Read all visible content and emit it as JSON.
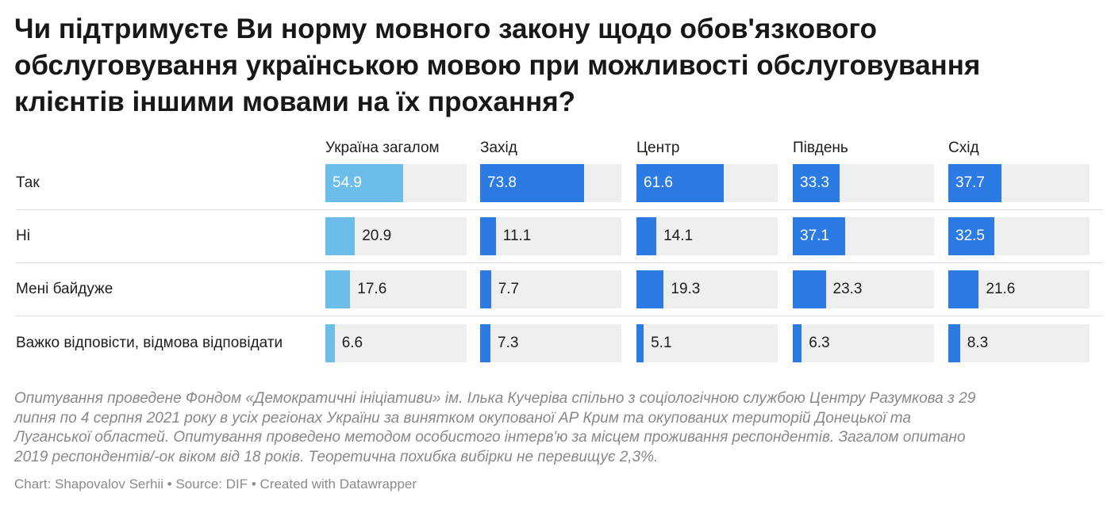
{
  "title_lines": [
    "Чи підтримуєте Ви норму мовного закону щодо обов'язкового",
    "обслуговування українською мовою при можливості обслуговування",
    "клієнтів іншими мовами на їх прохання?"
  ],
  "notes_lines": [
    "Опитування проведене Фондом «Демократичні ініціативи» ім. Ілька Кучеріва спільно з соціологічною службою Центру Разумкова з 29",
    "липня по 4 серпня 2021 року в усіх регіонах України за винятком окупованої АР Крим та окупованих територій Донецької та",
    "Луганської областей. Опитування проведено методом особистого інтерв'ю за місцем проживання респондентів. Загалом опитано",
    "2019 респондентів/-ок віком від 18 років. Теоретична похибка вибірки не перевищує 2,3%."
  ],
  "byline": "Chart: Shapovalov Serhii • Source: DIF • Created with Datawrapper",
  "colors": {
    "ukraine_bar": "#6cbdea",
    "region_bar": "#2c7be5",
    "track": "#efefef"
  },
  "chart_data": {
    "type": "bar",
    "layout": "small-multiples-horizontal",
    "xlim": [
      0,
      100
    ],
    "categories": [
      "Так",
      "Ні",
      "Мені байдуже",
      "Важко відповісти, відмова відповідати"
    ],
    "series": [
      {
        "name": "Україна загалом",
        "values": [
          54.9,
          20.9,
          17.6,
          6.6
        ]
      },
      {
        "name": "Захід",
        "values": [
          73.8,
          11.1,
          7.7,
          7.3
        ]
      },
      {
        "name": "Центр",
        "values": [
          61.6,
          14.1,
          19.3,
          5.1
        ]
      },
      {
        "name": "Південь",
        "values": [
          33.3,
          37.1,
          23.3,
          6.3
        ]
      },
      {
        "name": "Схід",
        "values": [
          37.7,
          32.5,
          21.6,
          8.3
        ]
      }
    ]
  }
}
